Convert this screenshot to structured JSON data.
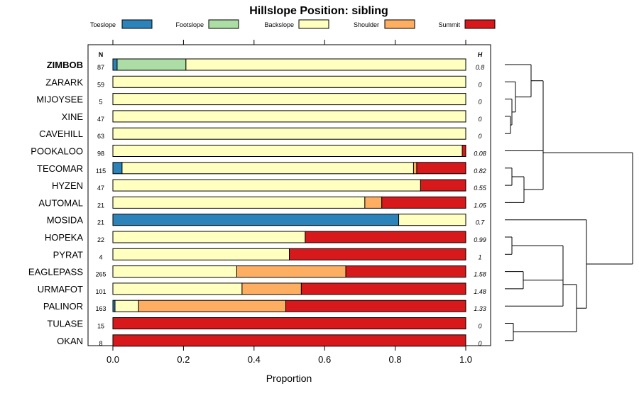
{
  "chart_data": {
    "type": "bar",
    "title": "Hillslope Position: sibling",
    "xlabel": "Proportion",
    "ylabel": "",
    "xlim": [
      0,
      1
    ],
    "x_ticks": [
      "0.0",
      "0.2",
      "0.4",
      "0.6",
      "0.8",
      "1.0"
    ],
    "stacked": true,
    "orientation": "horizontal",
    "legend_position": "top",
    "n_header": "N",
    "h_header": "H",
    "highlighted_category": "ZIMBOB",
    "series": [
      {
        "name": "Toeslope",
        "color": "#2b83ba"
      },
      {
        "name": "Footslope",
        "color": "#abdda4"
      },
      {
        "name": "Backslope",
        "color": "#ffffbf"
      },
      {
        "name": "Shoulder",
        "color": "#fdae61"
      },
      {
        "name": "Summit",
        "color": "#d7191c"
      }
    ],
    "rows": [
      {
        "name": "ZIMBOB",
        "n": "87",
        "h": "0.8",
        "values": [
          0.012,
          0.195,
          0.793,
          0,
          0
        ]
      },
      {
        "name": "ZARARK",
        "n": "59",
        "h": "0",
        "values": [
          0,
          0,
          1,
          0,
          0
        ]
      },
      {
        "name": "MIJOYSEE",
        "n": "5",
        "h": "0",
        "values": [
          0,
          0,
          1,
          0,
          0
        ]
      },
      {
        "name": "XINE",
        "n": "47",
        "h": "0",
        "values": [
          0,
          0,
          1,
          0,
          0
        ]
      },
      {
        "name": "CAVEHILL",
        "n": "63",
        "h": "0",
        "values": [
          0,
          0,
          1,
          0,
          0
        ]
      },
      {
        "name": "POOKALOO",
        "n": "98",
        "h": "0.08",
        "values": [
          0,
          0,
          0.99,
          0,
          0.01
        ]
      },
      {
        "name": "TECOMAR",
        "n": "115",
        "h": "0.82",
        "values": [
          0.026,
          0,
          0.826,
          0.009,
          0.139
        ]
      },
      {
        "name": "HYZEN",
        "n": "47",
        "h": "0.55",
        "values": [
          0,
          0,
          0.872,
          0,
          0.128
        ]
      },
      {
        "name": "AUTOMAL",
        "n": "21",
        "h": "1.05",
        "values": [
          0,
          0,
          0.714,
          0.048,
          0.238
        ]
      },
      {
        "name": "MOSIDA",
        "n": "21",
        "h": "0.7",
        "values": [
          0.81,
          0,
          0.19,
          0,
          0
        ]
      },
      {
        "name": "HOPEKA",
        "n": "22",
        "h": "0.99",
        "values": [
          0,
          0,
          0.545,
          0,
          0.455
        ]
      },
      {
        "name": "PYRAT",
        "n": "4",
        "h": "1",
        "values": [
          0,
          0,
          0.5,
          0,
          0.5
        ]
      },
      {
        "name": "EAGLEPASS",
        "n": "265",
        "h": "1.58",
        "values": [
          0,
          0,
          0.351,
          0.309,
          0.34
        ]
      },
      {
        "name": "URMAFOT",
        "n": "101",
        "h": "1.48",
        "values": [
          0,
          0,
          0.366,
          0.168,
          0.466
        ]
      },
      {
        "name": "PALINOR",
        "n": "163",
        "h": "1.33",
        "values": [
          0.006,
          0,
          0.067,
          0.417,
          0.51
        ]
      },
      {
        "name": "TULASE",
        "n": "15",
        "h": "0",
        "values": [
          0,
          0,
          0,
          0,
          1
        ]
      },
      {
        "name": "OKAN",
        "n": "8",
        "h": "0",
        "values": [
          0,
          0,
          0,
          0,
          1
        ]
      }
    ]
  }
}
